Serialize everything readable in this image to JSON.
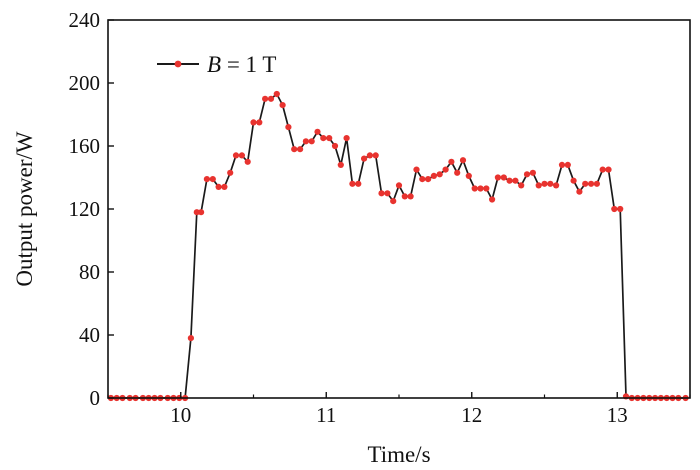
{
  "chart_data": {
    "type": "line",
    "xlabel": "Time/s",
    "ylabel": "Output power/W",
    "xlim": [
      9.5,
      13.5
    ],
    "ylim": [
      0,
      240
    ],
    "x_ticks": [
      10,
      11,
      12,
      13
    ],
    "y_ticks": [
      0,
      40,
      80,
      120,
      160,
      200,
      240
    ],
    "grid": false,
    "legend_position": "top-left",
    "series": [
      {
        "name": "B = 1 T",
        "name_italic_part": "B",
        "name_rest": " = 1 T",
        "line_color": "#1a1a1a",
        "marker_color": "#e8332f",
        "x": [
          9.52,
          9.56,
          9.6,
          9.65,
          9.69,
          9.74,
          9.78,
          9.82,
          9.86,
          9.91,
          9.95,
          9.99,
          10.03,
          10.07,
          10.11,
          10.14,
          10.18,
          10.22,
          10.26,
          10.3,
          10.34,
          10.38,
          10.42,
          10.46,
          10.5,
          10.54,
          10.58,
          10.62,
          10.66,
          10.7,
          10.74,
          10.78,
          10.82,
          10.86,
          10.9,
          10.94,
          10.98,
          11.02,
          11.06,
          11.1,
          11.14,
          11.18,
          11.22,
          11.26,
          11.3,
          11.34,
          11.38,
          11.42,
          11.46,
          11.5,
          11.54,
          11.58,
          11.62,
          11.66,
          11.7,
          11.74,
          11.78,
          11.82,
          11.86,
          11.9,
          11.94,
          11.98,
          12.02,
          12.06,
          12.1,
          12.14,
          12.18,
          12.22,
          12.26,
          12.3,
          12.34,
          12.38,
          12.42,
          12.46,
          12.5,
          12.54,
          12.58,
          12.62,
          12.66,
          12.7,
          12.74,
          12.78,
          12.82,
          12.86,
          12.9,
          12.94,
          12.98,
          13.02,
          13.06,
          13.1,
          13.14,
          13.18,
          13.22,
          13.26,
          13.3,
          13.34,
          13.38,
          13.42,
          13.47
        ],
        "y": [
          0,
          0,
          0,
          0,
          0,
          0,
          0,
          0,
          0,
          0,
          0,
          0,
          0,
          38,
          118,
          118,
          139,
          139,
          134,
          134,
          143,
          154,
          154,
          150,
          175,
          175,
          190,
          190,
          193,
          186,
          172,
          158,
          158,
          163,
          163,
          169,
          165,
          165,
          160,
          148,
          165,
          136,
          136,
          152,
          154,
          154,
          130,
          130,
          125,
          135,
          128,
          128,
          145,
          139,
          139,
          141,
          142,
          145,
          150,
          143,
          151,
          141,
          133,
          133,
          133,
          126,
          140,
          140,
          138,
          138,
          135,
          142,
          143,
          135,
          136,
          136,
          135,
          148,
          148,
          138,
          131,
          136,
          136,
          136,
          145,
          145,
          120,
          120,
          1,
          0,
          0,
          0,
          0,
          0,
          0,
          0,
          0,
          0,
          0
        ]
      }
    ]
  }
}
